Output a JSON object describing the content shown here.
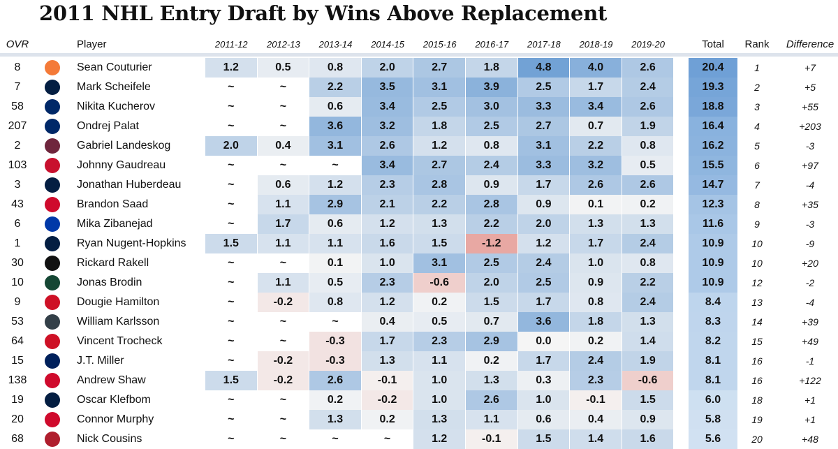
{
  "title": "2011 NHL Entry Draft by Wins Above Replacement",
  "headers": {
    "ovr": "OVR",
    "player": "Player",
    "seasons": [
      "2011-12",
      "2012-13",
      "2013-14",
      "2014-15",
      "2015-16",
      "2016-17",
      "2017-18",
      "2018-19",
      "2019-20"
    ],
    "total": "Total",
    "rank": "Rank",
    "difference": "Difference"
  },
  "colors": {
    "positive_max": "#6d9fd4",
    "negative_max": "#e8a8a3",
    "neutral": "#f5f5f5",
    "header_rule": "#dde3ec"
  },
  "chart_data": {
    "type": "table",
    "title": "2011 NHL Entry Draft by Wins Above Replacement",
    "missing_marker": "~",
    "rows": [
      {
        "ovr": "8",
        "team_icon": "flyers-logo-icon",
        "team_color": "#f47a38",
        "player": "Sean Couturier",
        "values": [
          "1.2",
          "0.5",
          "0.8",
          "2.0",
          "2.7",
          "1.8",
          "4.8",
          "4.0",
          "2.6"
        ],
        "total": "20.4",
        "rank": "1",
        "difference": "+7"
      },
      {
        "ovr": "7",
        "team_icon": "jets-logo-icon",
        "team_color": "#041e42",
        "player": "Mark Scheifele",
        "values": [
          "~",
          "~",
          "2.2",
          "3.5",
          "3.1",
          "3.9",
          "2.5",
          "1.7",
          "2.4"
        ],
        "total": "19.3",
        "rank": "2",
        "difference": "+5"
      },
      {
        "ovr": "58",
        "team_icon": "lightning-logo-icon",
        "team_color": "#002868",
        "player": "Nikita Kucherov",
        "values": [
          "~",
          "~",
          "0.6",
          "3.4",
          "2.5",
          "3.0",
          "3.3",
          "3.4",
          "2.6"
        ],
        "total": "18.8",
        "rank": "3",
        "difference": "+55"
      },
      {
        "ovr": "207",
        "team_icon": "lightning-logo-icon",
        "team_color": "#002868",
        "player": "Ondrej Palat",
        "values": [
          "~",
          "~",
          "3.6",
          "3.2",
          "1.8",
          "2.5",
          "2.7",
          "0.7",
          "1.9"
        ],
        "total": "16.4",
        "rank": "4",
        "difference": "+203"
      },
      {
        "ovr": "2",
        "team_icon": "avalanche-logo-icon",
        "team_color": "#6f263d",
        "player": "Gabriel Landeskog",
        "values": [
          "2.0",
          "0.4",
          "3.1",
          "2.6",
          "1.2",
          "0.8",
          "3.1",
          "2.2",
          "0.8"
        ],
        "total": "16.2",
        "rank": "5",
        "difference": "-3"
      },
      {
        "ovr": "103",
        "team_icon": "flames-logo-icon",
        "team_color": "#c8102e",
        "player": "Johnny Gaudreau",
        "values": [
          "~",
          "~",
          "~",
          "3.4",
          "2.7",
          "2.4",
          "3.3",
          "3.2",
          "0.5"
        ],
        "total": "15.5",
        "rank": "6",
        "difference": "+97"
      },
      {
        "ovr": "3",
        "team_icon": "panthers-logo-icon",
        "team_color": "#041e42",
        "player": "Jonathan Huberdeau",
        "values": [
          "~",
          "0.6",
          "1.2",
          "2.3",
          "2.8",
          "0.9",
          "1.7",
          "2.6",
          "2.6"
        ],
        "total": "14.7",
        "rank": "7",
        "difference": "-4"
      },
      {
        "ovr": "43",
        "team_icon": "blackhawks-logo-icon",
        "team_color": "#cf0a2c",
        "player": "Brandon Saad",
        "values": [
          "~",
          "1.1",
          "2.9",
          "2.1",
          "2.2",
          "2.8",
          "0.9",
          "0.1",
          "0.2"
        ],
        "total": "12.3",
        "rank": "8",
        "difference": "+35"
      },
      {
        "ovr": "6",
        "team_icon": "rangers-logo-icon",
        "team_color": "#0038a8",
        "player": "Mika Zibanejad",
        "values": [
          "~",
          "1.7",
          "0.6",
          "1.2",
          "1.3",
          "2.2",
          "2.0",
          "1.3",
          "1.3"
        ],
        "total": "11.6",
        "rank": "9",
        "difference": "-3"
      },
      {
        "ovr": "1",
        "team_icon": "oilers-logo-icon",
        "team_color": "#041e42",
        "player": "Ryan Nugent-Hopkins",
        "values": [
          "1.5",
          "1.1",
          "1.1",
          "1.6",
          "1.5",
          "-1.2",
          "1.2",
          "1.7",
          "2.4"
        ],
        "total": "10.9",
        "rank": "10",
        "difference": "-9"
      },
      {
        "ovr": "30",
        "team_icon": "ducks-logo-icon",
        "team_color": "#111111",
        "player": "Rickard Rakell",
        "values": [
          "~",
          "~",
          "0.1",
          "1.0",
          "3.1",
          "2.5",
          "2.4",
          "1.0",
          "0.8"
        ],
        "total": "10.9",
        "rank": "10",
        "difference": "+20"
      },
      {
        "ovr": "10",
        "team_icon": "wild-logo-icon",
        "team_color": "#154734",
        "player": "Jonas Brodin",
        "values": [
          "~",
          "1.1",
          "0.5",
          "2.3",
          "-0.6",
          "2.0",
          "2.5",
          "0.9",
          "2.2"
        ],
        "total": "10.9",
        "rank": "12",
        "difference": "-2"
      },
      {
        "ovr": "9",
        "team_icon": "hurricanes-logo-icon",
        "team_color": "#ce1126",
        "player": "Dougie Hamilton",
        "values": [
          "~",
          "-0.2",
          "0.8",
          "1.2",
          "0.2",
          "1.5",
          "1.7",
          "0.8",
          "2.4"
        ],
        "total": "8.4",
        "rank": "13",
        "difference": "-4"
      },
      {
        "ovr": "53",
        "team_icon": "golden-knights-logo-icon",
        "team_color": "#333f48",
        "player": "William Karlsson",
        "values": [
          "~",
          "~",
          "~",
          "0.4",
          "0.5",
          "0.7",
          "3.6",
          "1.8",
          "1.3"
        ],
        "total": "8.3",
        "rank": "14",
        "difference": "+39"
      },
      {
        "ovr": "64",
        "team_icon": "hurricanes-logo-icon",
        "team_color": "#ce1126",
        "player": "Vincent Trocheck",
        "values": [
          "~",
          "~",
          "-0.3",
          "1.7",
          "2.3",
          "2.9",
          "0.0",
          "0.2",
          "1.4"
        ],
        "total": "8.2",
        "rank": "15",
        "difference": "+49"
      },
      {
        "ovr": "15",
        "team_icon": "canucks-logo-icon",
        "team_color": "#00205b",
        "player": "J.T. Miller",
        "values": [
          "~",
          "-0.2",
          "-0.3",
          "1.3",
          "1.1",
          "0.2",
          "1.7",
          "2.4",
          "1.9"
        ],
        "total": "8.1",
        "rank": "16",
        "difference": "-1"
      },
      {
        "ovr": "138",
        "team_icon": "blackhawks-logo-icon",
        "team_color": "#cf0a2c",
        "player": "Andrew Shaw",
        "values": [
          "1.5",
          "-0.2",
          "2.6",
          "-0.1",
          "1.0",
          "1.3",
          "0.3",
          "2.3",
          "-0.6"
        ],
        "total": "8.1",
        "rank": "16",
        "difference": "+122"
      },
      {
        "ovr": "19",
        "team_icon": "oilers-logo-icon",
        "team_color": "#041e42",
        "player": "Oscar Klefbom",
        "values": [
          "~",
          "~",
          "0.2",
          "-0.2",
          "1.0",
          "2.6",
          "1.0",
          "-0.1",
          "1.5"
        ],
        "total": "6.0",
        "rank": "18",
        "difference": "+1"
      },
      {
        "ovr": "20",
        "team_icon": "blackhawks-logo-icon",
        "team_color": "#cf0a2c",
        "player": "Connor Murphy",
        "values": [
          "~",
          "~",
          "1.3",
          "0.2",
          "1.3",
          "1.1",
          "0.6",
          "0.4",
          "0.9"
        ],
        "total": "5.8",
        "rank": "19",
        "difference": "+1"
      },
      {
        "ovr": "68",
        "team_icon": "canadiens-logo-icon",
        "team_color": "#af1e2d",
        "player": "Nick Cousins",
        "values": [
          "~",
          "~",
          "~",
          "~",
          "1.2",
          "-0.1",
          "1.5",
          "1.4",
          "1.6"
        ],
        "total": "5.6",
        "rank": "20",
        "difference": "+48"
      }
    ]
  }
}
